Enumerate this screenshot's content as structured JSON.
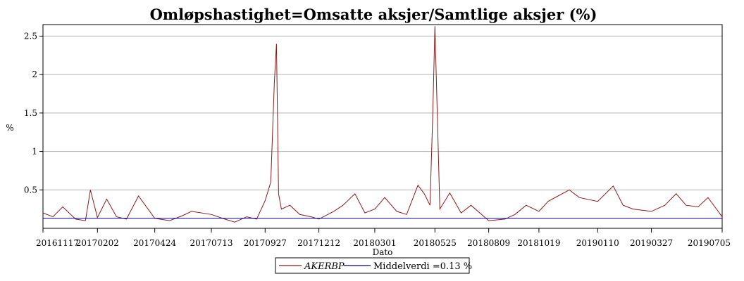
{
  "chart_data": {
    "type": "line",
    "title": "Omløpshastighet=Omsatte aksjer/Samtlige aksjer (%)",
    "xlabel": "Dato",
    "ylabel": "%",
    "ylim": [
      0,
      2.65
    ],
    "y_ticks": [
      0.5,
      1,
      1.5,
      2,
      2.5
    ],
    "y_tick_labels": [
      "0.5",
      "1",
      "1.5",
      "2",
      "2.5"
    ],
    "x_tick_labels": [
      "20161117",
      "20170202",
      "20170424",
      "20170713",
      "20170927",
      "20171212",
      "20180301",
      "20180525",
      "20180809",
      "20181019",
      "20190110",
      "20190327",
      "20190705"
    ],
    "grid": true,
    "legend_position": "bottom",
    "series": [
      {
        "name": "AKERBP",
        "color": "#8b1a1a",
        "x": [
          "20161117",
          "20161201",
          "20161215",
          "20170102",
          "20170116",
          "20170123",
          "20170202",
          "20170215",
          "20170301",
          "20170315",
          "20170401",
          "20170424",
          "20170515",
          "20170601",
          "20170615",
          "20170713",
          "20170801",
          "20170815",
          "20170901",
          "20170915",
          "20170927",
          "20171005",
          "20171010",
          "20171013",
          "20171016",
          "20171020",
          "20171101",
          "20171115",
          "20171201",
          "20171212",
          "20180102",
          "20180115",
          "20180201",
          "20180215",
          "20180301",
          "20180315",
          "20180401",
          "20180415",
          "20180501",
          "20180510",
          "20180518",
          "20180522",
          "20180525",
          "20180601",
          "20180615",
          "20180701",
          "20180715",
          "20180809",
          "20180901",
          "20180915",
          "20181001",
          "20181019",
          "20181101",
          "20181115",
          "20181201",
          "20181215",
          "20190110",
          "20190201",
          "20190215",
          "20190301",
          "20190327",
          "20190415",
          "20190501",
          "20190515",
          "20190601",
          "20190615",
          "20190705"
        ],
        "values": [
          0.2,
          0.15,
          0.28,
          0.12,
          0.1,
          0.5,
          0.14,
          0.38,
          0.15,
          0.12,
          0.42,
          0.13,
          0.1,
          0.16,
          0.22,
          0.18,
          0.12,
          0.08,
          0.15,
          0.12,
          0.36,
          0.6,
          1.9,
          2.4,
          0.45,
          0.25,
          0.3,
          0.18,
          0.15,
          0.12,
          0.22,
          0.3,
          0.45,
          0.2,
          0.25,
          0.4,
          0.22,
          0.18,
          0.56,
          0.45,
          0.3,
          1.5,
          2.63,
          0.25,
          0.46,
          0.2,
          0.3,
          0.1,
          0.12,
          0.18,
          0.3,
          0.22,
          0.35,
          0.42,
          0.5,
          0.4,
          0.35,
          0.55,
          0.3,
          0.25,
          0.22,
          0.3,
          0.45,
          0.3,
          0.28,
          0.4,
          0.15
        ]
      },
      {
        "name": "Middelverdi =0.13 %",
        "color": "#00008b",
        "x": [
          "20161117",
          "20190705"
        ],
        "values": [
          0.13,
          0.13
        ]
      }
    ],
    "legend_entries": [
      "AKERBP",
      "Middelverdi =0.13 %"
    ]
  }
}
